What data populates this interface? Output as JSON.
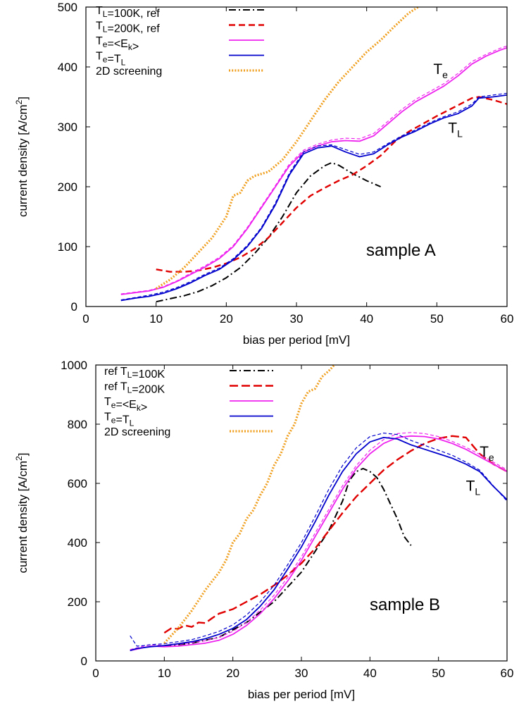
{
  "chart_data": [
    {
      "type": "line",
      "xlabel": "bias per period [mV]",
      "ylabel_main": "current density [A/cm",
      "ylabel_sup": "2",
      "ylabel_end": "]",
      "xlim": [
        0,
        60
      ],
      "ylim": [
        0,
        500
      ],
      "xticks": [
        0,
        10,
        20,
        30,
        40,
        50,
        60
      ],
      "yticks": [
        0,
        100,
        200,
        300,
        400,
        500
      ],
      "legend_position": "top-left",
      "annotation": "sample A",
      "curve_labels": [
        {
          "main": "T",
          "sub": "e",
          "x": 49.5,
          "y": 388
        },
        {
          "main": "T",
          "sub": "L",
          "x": 51.6,
          "y": 290
        }
      ],
      "legend": [
        {
          "parts": [
            [
              "T",
              ""
            ],
            [
              "L",
              "sub"
            ],
            [
              "=100K, ref",
              ""
            ]
          ]
        },
        {
          "parts": [
            [
              "T",
              ""
            ],
            [
              "L",
              "sub"
            ],
            [
              "=200K, ref",
              ""
            ]
          ]
        },
        {
          "parts": [
            [
              "T",
              ""
            ],
            [
              "e",
              "sub"
            ],
            [
              "=<E",
              ""
            ],
            [
              "k",
              "sub"
            ],
            [
              ">",
              ""
            ]
          ]
        },
        {
          "parts": [
            [
              "T",
              ""
            ],
            [
              "e",
              "sub"
            ],
            [
              "=T",
              ""
            ],
            [
              "L",
              "sub"
            ]
          ]
        },
        {
          "parts": [
            [
              "2D screening",
              ""
            ]
          ]
        }
      ],
      "series": [
        {
          "name": "TL=100K, ref",
          "color": "#000000",
          "dash": "10,4,2,4",
          "width": 2,
          "x": [
            10,
            12,
            14,
            16,
            18,
            20,
            22,
            24,
            26,
            28,
            30,
            32,
            34,
            35,
            36,
            38,
            40,
            42
          ],
          "y": [
            8,
            13,
            18,
            25,
            35,
            48,
            65,
            88,
            115,
            150,
            190,
            218,
            235,
            240,
            236,
            222,
            210,
            200
          ]
        },
        {
          "name": "TL=200K, ref",
          "color": "#e00000",
          "dash": "9,5",
          "width": 2.4,
          "x": [
            10,
            12,
            14,
            16,
            18,
            20,
            22,
            24,
            26,
            28,
            30,
            32,
            34,
            36,
            38,
            40,
            42,
            44,
            46,
            48,
            50,
            52,
            54,
            55,
            56,
            58,
            60
          ],
          "y": [
            62,
            58,
            58,
            60,
            65,
            72,
            82,
            96,
            115,
            140,
            165,
            185,
            198,
            210,
            220,
            235,
            252,
            275,
            292,
            305,
            318,
            330,
            342,
            348,
            350,
            345,
            338
          ]
        },
        {
          "name": "Te=<Ek>",
          "color": "#ee22ee",
          "dash": "",
          "width": 1.8,
          "x": [
            5,
            7,
            9,
            11,
            13,
            15,
            17,
            19,
            21,
            23,
            25,
            27,
            29,
            31,
            33,
            35,
            37,
            39,
            41,
            43,
            45,
            47,
            49,
            51,
            53,
            55,
            57,
            59,
            60
          ],
          "y": [
            20,
            23,
            26,
            32,
            42,
            54,
            66,
            80,
            100,
            130,
            165,
            200,
            235,
            258,
            268,
            275,
            277,
            276,
            285,
            305,
            325,
            342,
            355,
            368,
            385,
            405,
            418,
            428,
            432
          ]
        },
        {
          "name": "Te=<Ek> (dashed)",
          "color": "#ee22ee",
          "dash": "5,3",
          "width": 1.2,
          "x": [
            5,
            7,
            9,
            11,
            13,
            15,
            17,
            19,
            21,
            23,
            25,
            27,
            29,
            31,
            33,
            35,
            37,
            39,
            41,
            43,
            45,
            47,
            49,
            51,
            53,
            55,
            57,
            59,
            60
          ],
          "y": [
            21,
            24,
            27,
            33,
            43,
            56,
            68,
            82,
            102,
            132,
            167,
            202,
            238,
            261,
            271,
            278,
            281,
            280,
            289,
            309,
            329,
            346,
            359,
            372,
            389,
            409,
            421,
            431,
            435
          ]
        },
        {
          "name": "Te=TL",
          "color": "#0000cc",
          "dash": "",
          "width": 1.8,
          "x": [
            5,
            7,
            9,
            11,
            13,
            15,
            17,
            19,
            21,
            23,
            25,
            27,
            29,
            31,
            33,
            35,
            37,
            39,
            41,
            43,
            45,
            47,
            49,
            51,
            53,
            55,
            56,
            58,
            60
          ],
          "y": [
            10,
            14,
            17,
            22,
            30,
            40,
            52,
            62,
            78,
            100,
            130,
            170,
            220,
            255,
            265,
            268,
            258,
            250,
            255,
            270,
            283,
            293,
            305,
            315,
            322,
            335,
            348,
            350,
            353
          ]
        },
        {
          "name": "Te=TL (dashed)",
          "color": "#0000cc",
          "dash": "5,3",
          "width": 1.2,
          "x": [
            5,
            7,
            9,
            11,
            13,
            15,
            17,
            19,
            21,
            23,
            25,
            27,
            29,
            31,
            33,
            35,
            37,
            39,
            41,
            43,
            45,
            47,
            49,
            51,
            53,
            55,
            56,
            58,
            60
          ],
          "y": [
            11,
            15,
            19,
            24,
            32,
            42,
            54,
            64,
            80,
            102,
            132,
            173,
            223,
            258,
            268,
            270,
            262,
            254,
            258,
            272,
            285,
            295,
            307,
            317,
            325,
            338,
            350,
            353,
            356
          ]
        },
        {
          "name": "2D screening",
          "color": "#f0a020",
          "dash": "2,2.2",
          "width": 3.2,
          "x": [
            10,
            12,
            14,
            16,
            18,
            20,
            21,
            22,
            23,
            24,
            26,
            28,
            30,
            32,
            34,
            36,
            38,
            40,
            42,
            44,
            46,
            48
          ],
          "y": [
            30,
            45,
            65,
            90,
            115,
            150,
            185,
            190,
            210,
            218,
            225,
            245,
            275,
            310,
            345,
            375,
            400,
            425,
            445,
            468,
            490,
            505
          ]
        }
      ]
    },
    {
      "type": "line",
      "xlabel": "bias per period [mV]",
      "ylabel_main": "current density [A/cm",
      "ylabel_sup": "2",
      "ylabel_end": "]",
      "xlim": [
        0,
        60
      ],
      "ylim": [
        0,
        1000
      ],
      "xticks": [
        0,
        10,
        20,
        30,
        40,
        50,
        60
      ],
      "yticks": [
        0,
        200,
        400,
        600,
        800,
        1000
      ],
      "legend_position": "top-left",
      "annotation": "sample B",
      "curve_labels": [
        {
          "main": "T",
          "sub": "e",
          "x": 56.0,
          "y": 690
        },
        {
          "main": "T",
          "sub": "L",
          "x": 54.0,
          "y": 575
        }
      ],
      "legend": [
        {
          "parts": [
            [
              "ref T",
              ""
            ],
            [
              "L",
              "sub"
            ],
            [
              "=100K",
              ""
            ]
          ]
        },
        {
          "parts": [
            [
              "ref T",
              ""
            ],
            [
              "L",
              "sub"
            ],
            [
              "=200K",
              ""
            ]
          ]
        },
        {
          "parts": [
            [
              "T",
              ""
            ],
            [
              "e",
              "sub"
            ],
            [
              "=<E",
              ""
            ],
            [
              "k",
              "sub"
            ],
            [
              ">",
              ""
            ]
          ]
        },
        {
          "parts": [
            [
              "T",
              ""
            ],
            [
              "e",
              "sub"
            ],
            [
              "=T",
              ""
            ],
            [
              "L",
              "sub"
            ]
          ]
        },
        {
          "parts": [
            [
              "2D screening",
              ""
            ]
          ]
        }
      ],
      "series": [
        {
          "name": "ref TL=100K",
          "color": "#000000",
          "dash": "10,4,2,4",
          "width": 2,
          "x": [
            10,
            14,
            18,
            22,
            26,
            30,
            34,
            36,
            37,
            38,
            39,
            40,
            41,
            42,
            43,
            44,
            45,
            46
          ],
          "y": [
            50,
            60,
            80,
            130,
            200,
            300,
            440,
            540,
            610,
            640,
            650,
            640,
            620,
            580,
            530,
            480,
            420,
            390
          ]
        },
        {
          "name": "ref TL=200K",
          "color": "#e00000",
          "dash": "12,5",
          "width": 2.4,
          "x": [
            10,
            11,
            12,
            13,
            14,
            15,
            16,
            17,
            18,
            20,
            22,
            24,
            26,
            28,
            30,
            32,
            34,
            36,
            38,
            40,
            42,
            44,
            46,
            48,
            50,
            52,
            54,
            56,
            58,
            60
          ],
          "y": [
            95,
            110,
            108,
            120,
            115,
            130,
            128,
            145,
            160,
            175,
            200,
            225,
            255,
            290,
            330,
            380,
            440,
            500,
            555,
            600,
            645,
            680,
            710,
            735,
            752,
            760,
            755,
            700,
            665,
            640
          ]
        },
        {
          "name": "Te=<Ek>",
          "color": "#ee22ee",
          "dash": "",
          "width": 1.8,
          "x": [
            5,
            6,
            7,
            8,
            10,
            12,
            14,
            16,
            18,
            20,
            22,
            24,
            26,
            28,
            30,
            32,
            34,
            36,
            38,
            40,
            42,
            44,
            46,
            48,
            50,
            52,
            54,
            56,
            58,
            60
          ],
          "y": [
            35,
            40,
            45,
            50,
            48,
            50,
            55,
            60,
            70,
            90,
            120,
            160,
            210,
            270,
            340,
            420,
            500,
            580,
            650,
            700,
            735,
            755,
            760,
            758,
            750,
            735,
            715,
            690,
            665,
            640
          ]
        },
        {
          "name": "Te=<Ek> (dashed)",
          "color": "#ee22ee",
          "dash": "5,3",
          "width": 1.2,
          "x": [
            5,
            6,
            7,
            8,
            10,
            12,
            14,
            16,
            18,
            20,
            22,
            24,
            26,
            28,
            30,
            32,
            34,
            36,
            38,
            40,
            42,
            44,
            46,
            48,
            50,
            52,
            54,
            56,
            58,
            60
          ],
          "y": [
            38,
            44,
            50,
            55,
            52,
            56,
            62,
            68,
            80,
            100,
            130,
            172,
            222,
            282,
            352,
            432,
            512,
            592,
            660,
            712,
            748,
            768,
            772,
            768,
            758,
            742,
            722,
            698,
            672,
            646
          ]
        },
        {
          "name": "Te=TL",
          "color": "#0000cc",
          "dash": "",
          "width": 1.8,
          "x": [
            5,
            6,
            7,
            8,
            10,
            12,
            14,
            16,
            18,
            20,
            22,
            24,
            26,
            28,
            30,
            32,
            34,
            36,
            38,
            40,
            42,
            44,
            46,
            48,
            50,
            52,
            54,
            56,
            58,
            60
          ],
          "y": [
            35,
            42,
            45,
            48,
            52,
            58,
            65,
            75,
            90,
            110,
            140,
            185,
            240,
            310,
            385,
            470,
            560,
            640,
            700,
            740,
            755,
            750,
            730,
            715,
            700,
            685,
            665,
            640,
            590,
            545
          ]
        },
        {
          "name": "Te=TL (dashed)",
          "color": "#0000cc",
          "dash": "5,3",
          "width": 1.2,
          "x": [
            5,
            6,
            7,
            8,
            10,
            12,
            14,
            16,
            18,
            20,
            22,
            24,
            26,
            28,
            30,
            32,
            34,
            36,
            38,
            40,
            42,
            44,
            46,
            48,
            50,
            52,
            54,
            56,
            58,
            60
          ],
          "y": [
            85,
            50,
            52,
            55,
            58,
            65,
            72,
            85,
            100,
            122,
            155,
            200,
            255,
            325,
            400,
            488,
            580,
            660,
            720,
            758,
            770,
            765,
            745,
            728,
            712,
            695,
            672,
            645,
            592,
            540
          ]
        },
        {
          "name": "2D screening",
          "color": "#f0a020",
          "dash": "2,2.2",
          "width": 3.2,
          "x": [
            10,
            12,
            14,
            16,
            18,
            19,
            20,
            21,
            22,
            23,
            24,
            25,
            26,
            27,
            28,
            29,
            30,
            31,
            32,
            33,
            34,
            35
          ],
          "y": [
            60,
            110,
            170,
            240,
            300,
            340,
            400,
            430,
            480,
            510,
            560,
            600,
            660,
            700,
            760,
            800,
            870,
            910,
            920,
            960,
            980,
            1005
          ]
        }
      ]
    }
  ]
}
